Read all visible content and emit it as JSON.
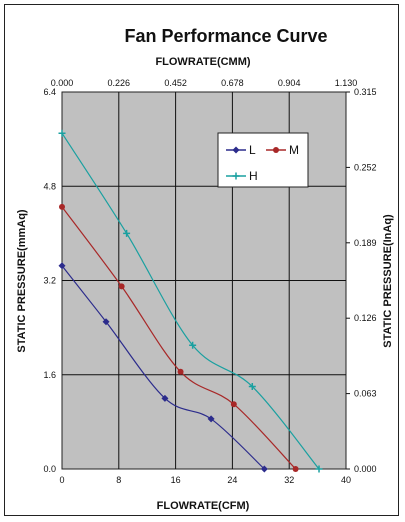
{
  "chart_data": {
    "type": "line",
    "title": "Fan Performance Curve",
    "xlabel_bottom": "FLOWRATE(CFM)",
    "xlabel_top": "FLOWRATE(CMM)",
    "ylabel_left": "STATIC PRESSURE(mmAq)",
    "ylabel_right": "STATIC PRESSURE(InAq)",
    "xlim": [
      0,
      40
    ],
    "ylim": [
      0,
      6.4
    ],
    "x_ticks_bottom": [
      "0",
      "8",
      "16",
      "24",
      "32",
      "40"
    ],
    "x_ticks_top": [
      "0.000",
      "0.226",
      "0.452",
      "0.678",
      "0.904",
      "1.130"
    ],
    "y_ticks_left": [
      "0.0",
      "1.6",
      "3.2",
      "4.8",
      "6.4"
    ],
    "y_ticks_right": [
      "0.000",
      "0.063",
      "0.126",
      "0.189",
      "0.252",
      "0.315"
    ],
    "grid": true,
    "legend_position": "top-right (inside plot)",
    "plot_background": "#c0c0c0",
    "series": [
      {
        "name": "L",
        "color": "#2c2c8c",
        "marker": "diamond",
        "x": [
          0,
          6.2,
          14.5,
          21.0,
          28.5
        ],
        "y": [
          3.45,
          2.5,
          1.2,
          0.85,
          0.0
        ]
      },
      {
        "name": "M",
        "color": "#a82828",
        "marker": "circle",
        "x": [
          0,
          8.4,
          16.7,
          24.2,
          32.9
        ],
        "y": [
          4.45,
          3.1,
          1.65,
          1.1,
          0.0
        ]
      },
      {
        "name": "H",
        "color": "#1aa0a0",
        "marker": "plus",
        "x": [
          0,
          9.1,
          18.4,
          26.8,
          36.2
        ],
        "y": [
          5.7,
          4.0,
          2.1,
          1.4,
          0.0
        ]
      }
    ]
  }
}
